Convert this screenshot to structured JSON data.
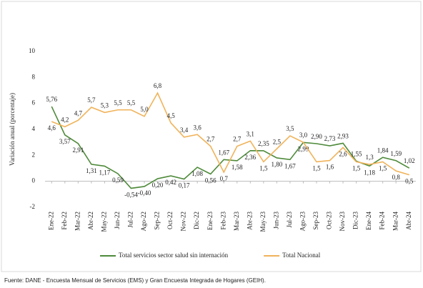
{
  "chart_data": {
    "type": "line",
    "y_label": "Variación anual (porcentaje)",
    "categories": [
      "Ene-22",
      "Feb-22",
      "Mar-22",
      "Abr-22",
      "May-22",
      "Jun-22",
      "Jul-22",
      "Ago-22",
      "Sep-22",
      "Oct-22",
      "Nov-22",
      "Dic-22",
      "Ene-23",
      "Feb-23",
      "Mar-23",
      "Abr-23",
      "May-23",
      "Jun-23",
      "Jul-23",
      "Ago-23",
      "Sep-23",
      "Oct-23",
      "Nov-23",
      "Dic-23",
      "Ene-24",
      "Feb-24",
      "Mar-24",
      "Abr-24"
    ],
    "series": [
      {
        "name": "Total servicios sector salud sin internación",
        "color": "#4e8a3a",
        "values": [
          5.76,
          3.57,
          2.91,
          1.31,
          1.17,
          0.59,
          -0.54,
          -0.4,
          0.2,
          0.42,
          0.17,
          1.08,
          0.56,
          1.67,
          1.58,
          2.36,
          2.35,
          1.8,
          1.67,
          2.99,
          2.9,
          2.73,
          2.93,
          1.55,
          1.18,
          1.84,
          1.59,
          1.02
        ],
        "value_labels": [
          "5,76",
          "3,57",
          "2,91",
          "1,31",
          "1,17",
          "0,59",
          "-0,54",
          "-0,40",
          "0,20",
          "0,42",
          "0,17",
          "1,08",
          "0,56",
          "1,67",
          "1,58",
          "2,36",
          "2,35",
          "1,80",
          "1,67",
          "2,99",
          "2,90",
          "2,73",
          "2,93",
          "1,55",
          "1,18",
          "1,84",
          "1,59",
          "1,02"
        ]
      },
      {
        "name": "Total Nacional",
        "color": "#f0b35a",
        "values": [
          4.6,
          4.2,
          4.7,
          5.7,
          5.3,
          5.5,
          5.5,
          5.0,
          6.8,
          4.5,
          3.4,
          3.6,
          2.7,
          0.7,
          2.7,
          3.1,
          1.5,
          2.5,
          3.5,
          3.0,
          1.5,
          1.6,
          2.6,
          1.5,
          1.3,
          1.5,
          0.8,
          0.5
        ],
        "value_labels": [
          "4,6",
          "4,2",
          "4,7",
          "5,7",
          "5,3",
          "5,5",
          "5,5",
          "5,0",
          "6,8",
          "4,5",
          "3,4",
          "3,6",
          "2,7",
          "0,7",
          "2,7",
          "3,1",
          "1,5",
          "2,5",
          "3,5",
          "3,0",
          "1,5",
          "1,6",
          "2,6",
          "1,5",
          "1,3",
          "1,5",
          "0,8",
          "0,5"
        ]
      }
    ],
    "ylim": [
      -2,
      10
    ],
    "yticks": [
      -2,
      0,
      2,
      4,
      6,
      8,
      10
    ],
    "source": "Fuente: DANE - Encuesta Mensual de Servicios (EMS) y Gran Encuesta Integrada de Hogares (GEIH)."
  }
}
